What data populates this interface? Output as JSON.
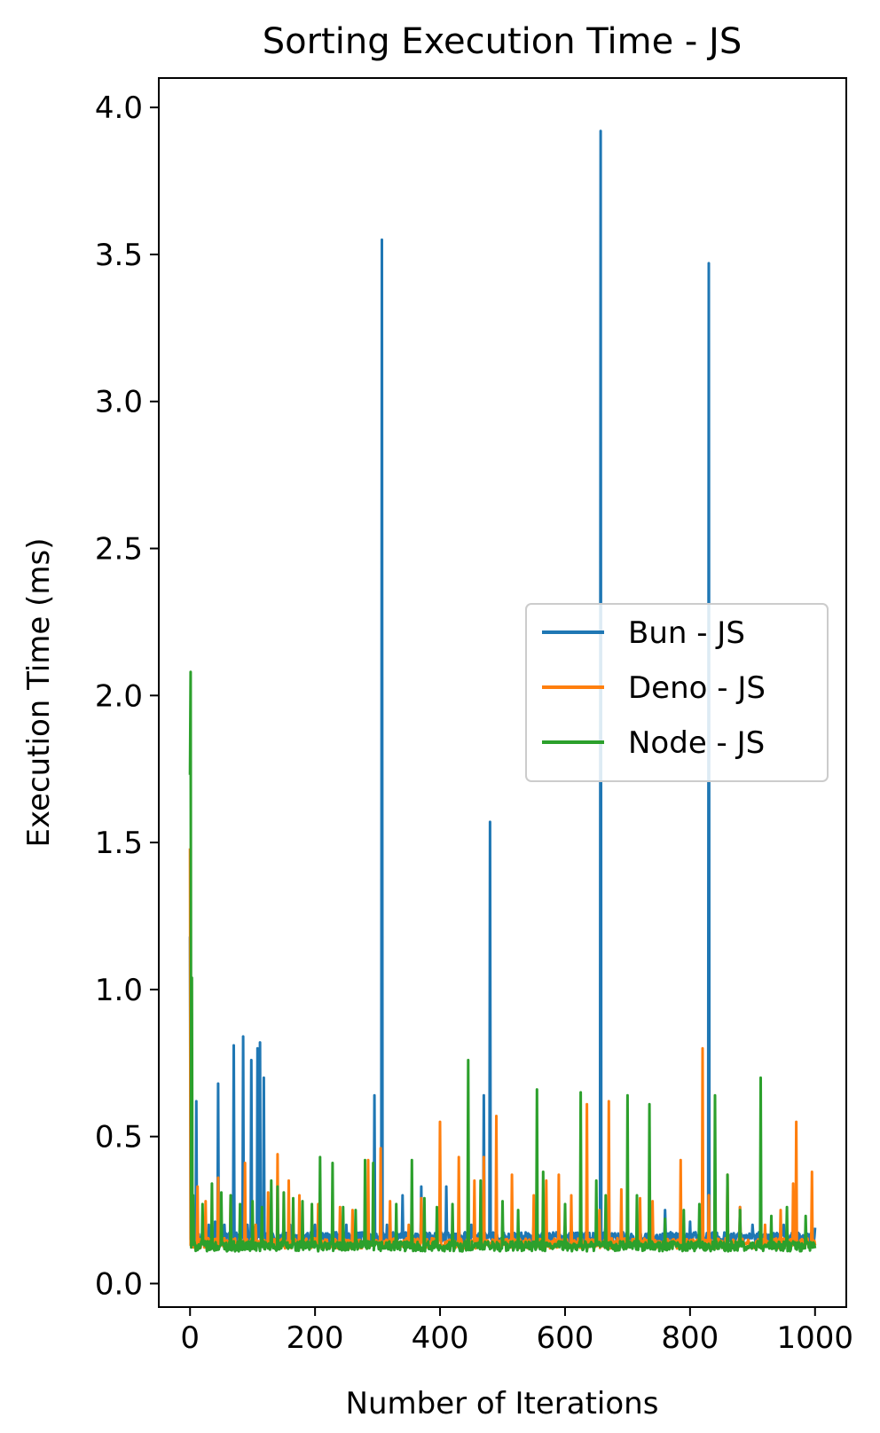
{
  "chart_data": {
    "type": "line",
    "title": "Sorting Execution Time - JS",
    "xlabel": "Number of Iterations",
    "ylabel": "Execution Time (ms)",
    "xlim": [
      -50,
      1050
    ],
    "ylim": [
      -0.08,
      4.1
    ],
    "xticks": [
      0,
      200,
      400,
      600,
      800,
      1000
    ],
    "yticks": [
      0.0,
      0.5,
      1.0,
      1.5,
      2.0,
      2.5,
      3.0,
      3.5,
      4.0
    ],
    "xtick_labels": [
      "0",
      "200",
      "400",
      "600",
      "800",
      "1000"
    ],
    "ytick_labels": [
      "0.0",
      "0.5",
      "1.0",
      "1.5",
      "2.0",
      "2.5",
      "3.0",
      "3.5",
      "4.0"
    ],
    "legend_position": "center-right",
    "grid": false,
    "series": [
      {
        "name": "Bun - JS",
        "color": "#1f77b4",
        "baseline": 0.15,
        "peaks": [
          [
            0,
            1.18
          ],
          [
            2,
            0.8
          ],
          [
            5,
            0.18
          ],
          [
            10,
            0.62
          ],
          [
            20,
            0.18
          ],
          [
            30,
            0.2
          ],
          [
            40,
            0.21
          ],
          [
            45,
            0.68
          ],
          [
            55,
            0.2
          ],
          [
            70,
            0.81
          ],
          [
            80,
            0.19
          ],
          [
            85,
            0.84
          ],
          [
            92,
            0.2
          ],
          [
            98,
            0.76
          ],
          [
            103,
            0.19
          ],
          [
            108,
            0.8
          ],
          [
            112,
            0.82
          ],
          [
            118,
            0.7
          ],
          [
            130,
            0.19
          ],
          [
            160,
            0.2
          ],
          [
            200,
            0.2
          ],
          [
            250,
            0.2
          ],
          [
            295,
            0.64
          ],
          [
            300,
            0.15
          ],
          [
            307,
            3.55
          ],
          [
            315,
            0.2
          ],
          [
            340,
            0.3
          ],
          [
            370,
            0.33
          ],
          [
            410,
            0.33
          ],
          [
            450,
            0.2
          ],
          [
            470,
            0.64
          ],
          [
            480,
            1.57
          ],
          [
            500,
            0.2
          ],
          [
            550,
            0.21
          ],
          [
            600,
            0.2
          ],
          [
            650,
            0.19
          ],
          [
            657,
            3.92
          ],
          [
            665,
            0.2
          ],
          [
            700,
            0.2
          ],
          [
            760,
            0.25
          ],
          [
            800,
            0.21
          ],
          [
            830,
            3.47
          ],
          [
            840,
            0.2
          ],
          [
            880,
            0.26
          ],
          [
            900,
            0.2
          ],
          [
            950,
            0.2
          ],
          [
            1000,
            0.19
          ]
        ]
      },
      {
        "name": "Deno - JS",
        "color": "#ff7f0e",
        "baseline": 0.13,
        "peaks": [
          [
            0,
            1.48
          ],
          [
            3,
            0.2
          ],
          [
            12,
            0.33
          ],
          [
            25,
            0.28
          ],
          [
            45,
            0.36
          ],
          [
            65,
            0.3
          ],
          [
            88,
            0.41
          ],
          [
            105,
            0.2
          ],
          [
            125,
            0.31
          ],
          [
            140,
            0.44
          ],
          [
            158,
            0.35
          ],
          [
            175,
            0.3
          ],
          [
            205,
            0.27
          ],
          [
            240,
            0.26
          ],
          [
            260,
            0.25
          ],
          [
            285,
            0.42
          ],
          [
            305,
            0.46
          ],
          [
            320,
            0.28
          ],
          [
            350,
            0.2
          ],
          [
            370,
            0.29
          ],
          [
            400,
            0.55
          ],
          [
            430,
            0.43
          ],
          [
            455,
            0.35
          ],
          [
            470,
            0.43
          ],
          [
            490,
            0.57
          ],
          [
            515,
            0.37
          ],
          [
            550,
            0.3
          ],
          [
            570,
            0.35
          ],
          [
            590,
            0.37
          ],
          [
            610,
            0.3
          ],
          [
            635,
            0.61
          ],
          [
            655,
            0.25
          ],
          [
            670,
            0.62
          ],
          [
            690,
            0.32
          ],
          [
            720,
            0.29
          ],
          [
            740,
            0.28
          ],
          [
            785,
            0.42
          ],
          [
            820,
            0.8
          ],
          [
            830,
            0.3
          ],
          [
            860,
            0.37
          ],
          [
            880,
            0.26
          ],
          [
            920,
            0.2
          ],
          [
            945,
            0.25
          ],
          [
            965,
            0.34
          ],
          [
            970,
            0.55
          ],
          [
            995,
            0.38
          ],
          [
            1000,
            0.13
          ]
        ]
      },
      {
        "name": "Node - JS",
        "color": "#2ca02c",
        "baseline": 0.12,
        "peaks": [
          [
            0,
            1.73
          ],
          [
            1,
            2.08
          ],
          [
            3,
            1.04
          ],
          [
            5,
            0.3
          ],
          [
            20,
            0.27
          ],
          [
            35,
            0.34
          ],
          [
            50,
            0.31
          ],
          [
            65,
            0.3
          ],
          [
            80,
            0.27
          ],
          [
            100,
            0.28
          ],
          [
            115,
            0.26
          ],
          [
            130,
            0.35
          ],
          [
            140,
            0.33
          ],
          [
            150,
            0.31
          ],
          [
            165,
            0.29
          ],
          [
            180,
            0.28
          ],
          [
            195,
            0.27
          ],
          [
            208,
            0.43
          ],
          [
            228,
            0.41
          ],
          [
            245,
            0.26
          ],
          [
            265,
            0.25
          ],
          [
            280,
            0.42
          ],
          [
            293,
            0.41
          ],
          [
            330,
            0.27
          ],
          [
            355,
            0.42
          ],
          [
            375,
            0.29
          ],
          [
            395,
            0.26
          ],
          [
            420,
            0.27
          ],
          [
            445,
            0.76
          ],
          [
            465,
            0.35
          ],
          [
            500,
            0.28
          ],
          [
            525,
            0.25
          ],
          [
            555,
            0.66
          ],
          [
            565,
            0.38
          ],
          [
            600,
            0.27
          ],
          [
            625,
            0.65
          ],
          [
            650,
            0.35
          ],
          [
            665,
            0.3
          ],
          [
            700,
            0.64
          ],
          [
            715,
            0.3
          ],
          [
            735,
            0.61
          ],
          [
            760,
            0.22
          ],
          [
            790,
            0.25
          ],
          [
            815,
            0.27
          ],
          [
            840,
            0.64
          ],
          [
            860,
            0.37
          ],
          [
            880,
            0.25
          ],
          [
            913,
            0.7
          ],
          [
            930,
            0.23
          ],
          [
            955,
            0.26
          ],
          [
            985,
            0.23
          ],
          [
            1000,
            0.12
          ]
        ]
      }
    ]
  }
}
